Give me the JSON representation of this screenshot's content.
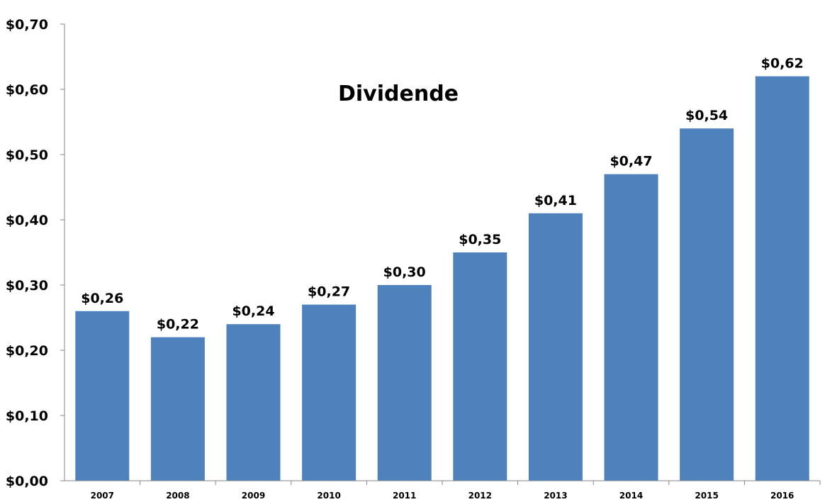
{
  "chart_data": {
    "type": "bar",
    "title": "Dividende",
    "xlabel": "",
    "ylabel": "",
    "categories": [
      "2007",
      "2008",
      "2009",
      "2010",
      "2011",
      "2012",
      "2013",
      "2014",
      "2015",
      "2016"
    ],
    "values": [
      0.26,
      0.22,
      0.24,
      0.27,
      0.3,
      0.35,
      0.41,
      0.47,
      0.54,
      0.62
    ],
    "data_labels": [
      "$0,26",
      "$0,22",
      "$0,24",
      "$0,27",
      "$0,30",
      "$0,35",
      "$0,41",
      "$0,47",
      "$0,54",
      "$0,62"
    ],
    "ylim": [
      0,
      0.7
    ],
    "yticks": [
      0,
      0.1,
      0.2,
      0.3,
      0.4,
      0.5,
      0.6,
      0.7
    ],
    "ytick_labels": [
      "$0,00",
      "$0,10",
      "$0,20",
      "$0,30",
      "$0,40",
      "$0,50",
      "$0,60",
      "$0,70"
    ],
    "grid": false,
    "legend": "none",
    "bar_color": "#4F81BD"
  }
}
